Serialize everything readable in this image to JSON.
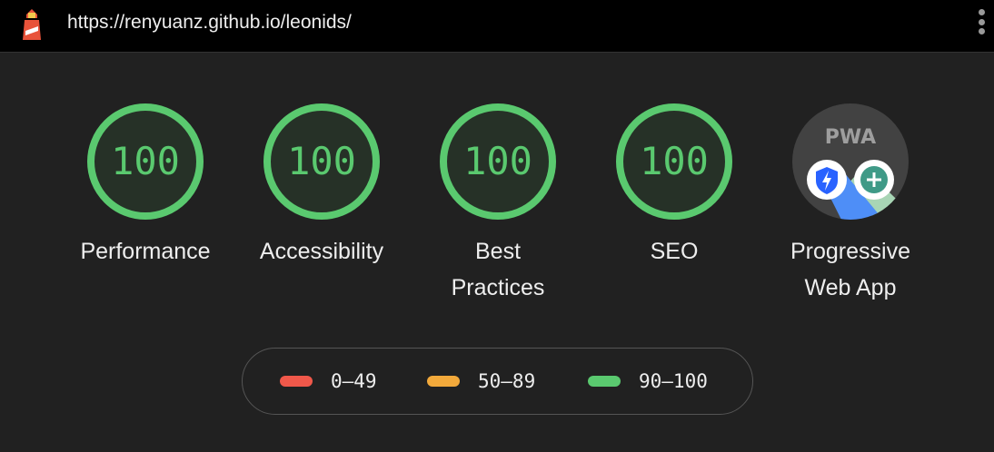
{
  "header": {
    "url": "https://renyuanz.github.io/leonids/",
    "logo_icon": "lighthouse-icon",
    "menu_icon": "more-vert-icon"
  },
  "gauges": [
    {
      "score": "100",
      "label": "Performance"
    },
    {
      "score": "100",
      "label": "Accessibility"
    },
    {
      "score": "100",
      "label": "Best Practices"
    },
    {
      "score": "100",
      "label": "SEO"
    }
  ],
  "pwa": {
    "badge_text": "PWA",
    "label": "Progressive Web App",
    "icons": [
      "fast-reliable-icon",
      "installable-icon"
    ]
  },
  "legend": [
    {
      "range": "0–49",
      "color": "#f0584a"
    },
    {
      "range": "50–89",
      "color": "#f2a93b"
    },
    {
      "range": "90–100",
      "color": "#5ac96f"
    }
  ],
  "colors": {
    "pass": "#5ac96f",
    "background": "#212121"
  }
}
